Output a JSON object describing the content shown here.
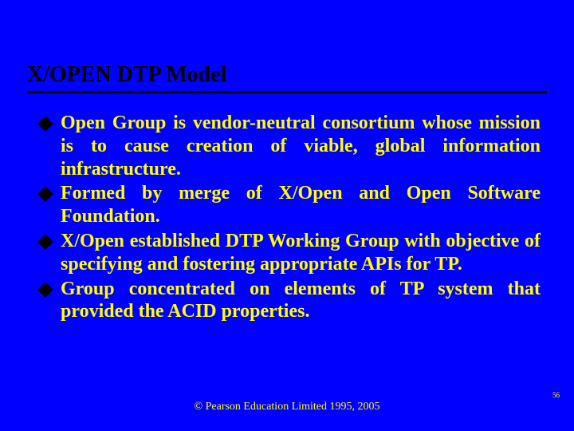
{
  "slide": {
    "title": "X/OPEN DTP Model",
    "bullets": [
      "Open Group is vendor-neutral consortium whose mission is to cause creation of viable, global information infrastructure.",
      "Formed by merge of X/Open and Open Software Foundation.",
      "X/Open established DTP Working Group with objective of specifying and fostering appropriate APIs for TP.",
      "Group concentrated on elements of TP system that provided the ACID properties."
    ],
    "footer": "© Pearson Education Limited 1995, 2005",
    "page_number": "56"
  },
  "style": {
    "background_color": "#0000ff",
    "title_color": "#000000",
    "title_fontsize": 28,
    "title_underline_color": "#000000",
    "title_underline_width": 3,
    "bullet_marker": "diamond",
    "bullet_marker_color": "#000000",
    "bullet_marker_size": 14,
    "text_color": "#ffff00",
    "text_fontsize": 24,
    "text_font_weight": "bold",
    "text_align": "justify",
    "footer_color": "#ffff00",
    "footer_fontsize": 14,
    "page_num_color": "#ffff00",
    "page_num_fontsize": 9,
    "font_family": "Times New Roman"
  }
}
